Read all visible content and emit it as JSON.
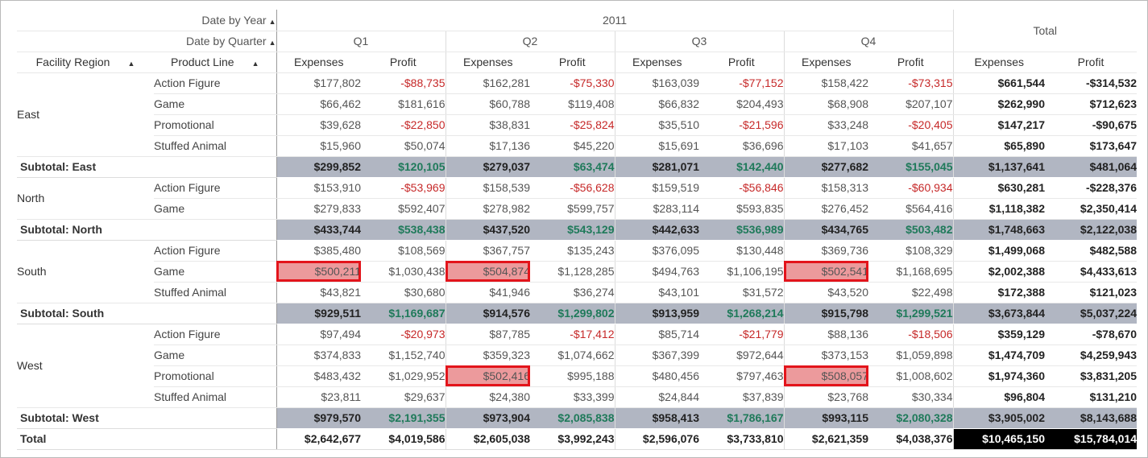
{
  "headers": {
    "date_by_year": "Date by Year",
    "date_by_quarter": "Date by Quarter",
    "facility_region": "Facility Region",
    "product_line": "Product Line",
    "year": "2011",
    "quarters": [
      "Q1",
      "Q2",
      "Q3",
      "Q4"
    ],
    "total": "Total",
    "measures": [
      "Expenses",
      "Profit"
    ],
    "sort_glyph": "▲"
  },
  "regions": [
    {
      "name": "East",
      "rows": [
        {
          "product": "Action Figure",
          "values": [
            "$177,802",
            "-$88,735",
            "$162,281",
            "-$75,330",
            "$163,039",
            "-$77,152",
            "$158,422",
            "-$73,315",
            "$661,544",
            "-$314,532"
          ]
        },
        {
          "product": "Game",
          "values": [
            "$66,462",
            "$181,616",
            "$60,788",
            "$119,408",
            "$66,832",
            "$204,493",
            "$68,908",
            "$207,107",
            "$262,990",
            "$712,623"
          ]
        },
        {
          "product": "Promotional",
          "values": [
            "$39,628",
            "-$22,850",
            "$38,831",
            "-$25,824",
            "$35,510",
            "-$21,596",
            "$33,248",
            "-$20,405",
            "$147,217",
            "-$90,675"
          ]
        },
        {
          "product": "Stuffed Animal",
          "values": [
            "$15,960",
            "$50,074",
            "$17,136",
            "$45,220",
            "$15,691",
            "$36,696",
            "$17,103",
            "$41,657",
            "$65,890",
            "$173,647"
          ]
        }
      ],
      "subtotal_label": "Subtotal: East",
      "subtotal": [
        "$299,852",
        "$120,105",
        "$279,037",
        "$63,474",
        "$281,071",
        "$142,440",
        "$277,682",
        "$155,045",
        "$1,137,641",
        "$481,064"
      ]
    },
    {
      "name": "North",
      "rows": [
        {
          "product": "Action Figure",
          "values": [
            "$153,910",
            "-$53,969",
            "$158,539",
            "-$56,628",
            "$159,519",
            "-$56,846",
            "$158,313",
            "-$60,934",
            "$630,281",
            "-$228,376"
          ]
        },
        {
          "product": "Game",
          "values": [
            "$279,833",
            "$592,407",
            "$278,982",
            "$599,757",
            "$283,114",
            "$593,835",
            "$276,452",
            "$564,416",
            "$1,118,382",
            "$2,350,414"
          ]
        }
      ],
      "subtotal_label": "Subtotal: North",
      "subtotal": [
        "$433,744",
        "$538,438",
        "$437,520",
        "$543,129",
        "$442,633",
        "$536,989",
        "$434,765",
        "$503,482",
        "$1,748,663",
        "$2,122,038"
      ]
    },
    {
      "name": "South",
      "rows": [
        {
          "product": "Action Figure",
          "values": [
            "$385,480",
            "$108,569",
            "$367,757",
            "$135,243",
            "$376,095",
            "$130,448",
            "$369,736",
            "$108,329",
            "$1,499,068",
            "$482,588"
          ]
        },
        {
          "product": "Game",
          "values": [
            "$500,211",
            "$1,030,438",
            "$504,874",
            "$1,128,285",
            "$494,763",
            "$1,106,195",
            "$502,541",
            "$1,168,695",
            "$2,002,388",
            "$4,433,613"
          ],
          "highlight": [
            0,
            2,
            6
          ]
        },
        {
          "product": "Stuffed Animal",
          "values": [
            "$43,821",
            "$30,680",
            "$41,946",
            "$36,274",
            "$43,101",
            "$31,572",
            "$43,520",
            "$22,498",
            "$172,388",
            "$121,023"
          ]
        }
      ],
      "subtotal_label": "Subtotal: South",
      "subtotal": [
        "$929,511",
        "$1,169,687",
        "$914,576",
        "$1,299,802",
        "$913,959",
        "$1,268,214",
        "$915,798",
        "$1,299,521",
        "$3,673,844",
        "$5,037,224"
      ]
    },
    {
      "name": "West",
      "rows": [
        {
          "product": "Action Figure",
          "values": [
            "$97,494",
            "-$20,973",
            "$87,785",
            "-$17,412",
            "$85,714",
            "-$21,779",
            "$88,136",
            "-$18,506",
            "$359,129",
            "-$78,670"
          ]
        },
        {
          "product": "Game",
          "values": [
            "$374,833",
            "$1,152,740",
            "$359,323",
            "$1,074,662",
            "$367,399",
            "$972,644",
            "$373,153",
            "$1,059,898",
            "$1,474,709",
            "$4,259,943"
          ]
        },
        {
          "product": "Promotional",
          "values": [
            "$483,432",
            "$1,029,952",
            "$502,416",
            "$995,188",
            "$480,456",
            "$797,463",
            "$508,057",
            "$1,008,602",
            "$1,974,360",
            "$3,831,205"
          ],
          "highlight": [
            2,
            6
          ]
        },
        {
          "product": "Stuffed Animal",
          "values": [
            "$23,811",
            "$29,637",
            "$24,380",
            "$33,399",
            "$24,844",
            "$37,839",
            "$23,768",
            "$30,334",
            "$96,804",
            "$131,210"
          ]
        }
      ],
      "subtotal_label": "Subtotal: West",
      "subtotal": [
        "$979,570",
        "$2,191,355",
        "$973,904",
        "$2,085,838",
        "$958,413",
        "$1,786,167",
        "$993,115",
        "$2,080,328",
        "$3,905,002",
        "$8,143,688"
      ]
    }
  ],
  "grand_total": {
    "label": "Total",
    "values": [
      "$2,642,677",
      "$4,019,586",
      "$2,605,038",
      "$3,992,243",
      "$2,596,076",
      "$3,733,810",
      "$2,621,359",
      "$4,038,376",
      "$10,465,150",
      "$15,784,014"
    ]
  },
  "colors": {
    "subtotal_bg": "#b1b6c2",
    "negative": "#c62828",
    "positive_subtotal": "#1f7a5a",
    "highlight_fill": "#ec9a9c",
    "highlight_border": "#e3141b",
    "grand_total_cell_bg": "#000000"
  }
}
